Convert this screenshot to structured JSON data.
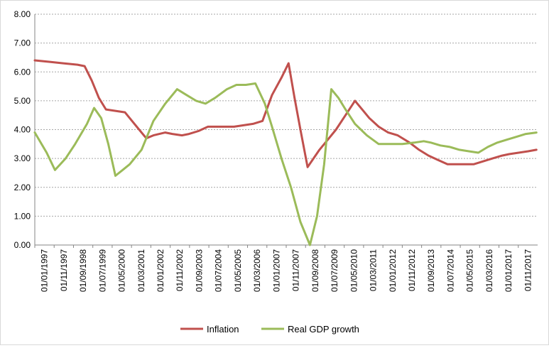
{
  "chart_data": {
    "type": "line",
    "title": "",
    "xlabel": "",
    "ylabel": "",
    "ylim": [
      0,
      8
    ],
    "y_ticks": [
      "0.00",
      "1.00",
      "2.00",
      "3.00",
      "4.00",
      "5.00",
      "6.00",
      "7.00",
      "8.00"
    ],
    "x_tick_labels": [
      "01/01/1997",
      "01/11/1997",
      "01/09/1998",
      "01/07/1999",
      "01/05/2000",
      "01/03/2001",
      "01/01/2002",
      "01/11/2002",
      "01/09/2003",
      "01/07/2004",
      "01/05/2005",
      "01/03/2006",
      "01/01/2007",
      "01/11/2007",
      "01/09/2008",
      "01/07/2009",
      "01/05/2010",
      "01/03/2011",
      "01/01/2012",
      "01/11/2012",
      "01/09/2013",
      "01/07/2014",
      "01/05/2015",
      "01/03/2016",
      "01/01/2017",
      "01/11/2017"
    ],
    "x_range": [
      1997.0,
      2018.2
    ],
    "grid": true,
    "legend_position": "bottom",
    "series": [
      {
        "name": "Inflation",
        "color": "#c0504d",
        "x": [
          1997.0,
          1997.6,
          1998.2,
          1998.8,
          1999.1,
          1999.4,
          1999.7,
          2000.0,
          2000.4,
          2000.8,
          2001.1,
          2001.4,
          2001.7,
          2002.0,
          2002.5,
          2002.8,
          2003.2,
          2003.5,
          2003.9,
          2004.3,
          2004.6,
          2005.0,
          2005.4,
          2005.8,
          2006.2,
          2006.6,
          2007.0,
          2007.4,
          2007.7,
          2007.95,
          2008.2,
          2008.5,
          2008.75,
          2009.0,
          2009.3,
          2009.7,
          2010.1,
          2010.5,
          2010.8,
          2011.1,
          2011.5,
          2011.9,
          2012.3,
          2012.8,
          2013.2,
          2013.6,
          2014.0,
          2014.4,
          2014.7,
          2015.0,
          2015.5,
          2015.9,
          2016.3,
          2016.7,
          2017.0,
          2017.4,
          2017.8,
          2018.15
        ],
        "values": [
          6.4,
          6.35,
          6.3,
          6.25,
          6.2,
          5.7,
          5.1,
          4.7,
          4.65,
          4.6,
          4.3,
          4.0,
          3.7,
          3.8,
          3.9,
          3.85,
          3.8,
          3.85,
          3.95,
          4.1,
          4.1,
          4.1,
          4.1,
          4.15,
          4.2,
          4.3,
          5.2,
          5.8,
          6.3,
          5.1,
          4.0,
          2.7,
          3.0,
          3.3,
          3.6,
          4.0,
          4.5,
          5.0,
          4.7,
          4.4,
          4.1,
          3.9,
          3.8,
          3.55,
          3.3,
          3.1,
          2.95,
          2.8,
          2.8,
          2.8,
          2.8,
          2.9,
          3.0,
          3.1,
          3.15,
          3.2,
          3.25,
          3.3
        ]
      },
      {
        "name": "Real GDP growth",
        "color": "#9bbb59",
        "x": [
          1997.0,
          1997.5,
          1997.85,
          1998.3,
          1998.7,
          1999.2,
          1999.5,
          1999.8,
          2000.1,
          2000.4,
          2000.7,
          2001.0,
          2001.5,
          2002.0,
          2002.5,
          2003.0,
          2003.4,
          2003.8,
          2004.2,
          2004.6,
          2005.1,
          2005.5,
          2005.9,
          2006.3,
          2006.7,
          2007.0,
          2007.4,
          2007.8,
          2008.2,
          2008.6,
          2008.9,
          2009.2,
          2009.5,
          2009.8,
          2010.1,
          2010.5,
          2011.0,
          2011.5,
          2011.9,
          2012.5,
          2013.0,
          2013.4,
          2013.7,
          2014.1,
          2014.5,
          2014.9,
          2015.3,
          2015.7,
          2016.1,
          2016.5,
          2016.9,
          2017.3,
          2017.7,
          2018.15
        ],
        "values": [
          3.9,
          3.2,
          2.6,
          3.0,
          3.5,
          4.2,
          4.75,
          4.4,
          3.5,
          2.4,
          2.6,
          2.8,
          3.3,
          4.3,
          4.9,
          5.4,
          5.2,
          5.0,
          4.9,
          5.1,
          5.4,
          5.55,
          5.55,
          5.6,
          4.9,
          4.1,
          3.0,
          2.0,
          0.8,
          0.0,
          1.0,
          2.8,
          5.4,
          5.1,
          4.7,
          4.2,
          3.8,
          3.5,
          3.5,
          3.5,
          3.55,
          3.6,
          3.55,
          3.45,
          3.4,
          3.3,
          3.25,
          3.2,
          3.4,
          3.55,
          3.65,
          3.75,
          3.85,
          3.9
        ]
      }
    ]
  }
}
